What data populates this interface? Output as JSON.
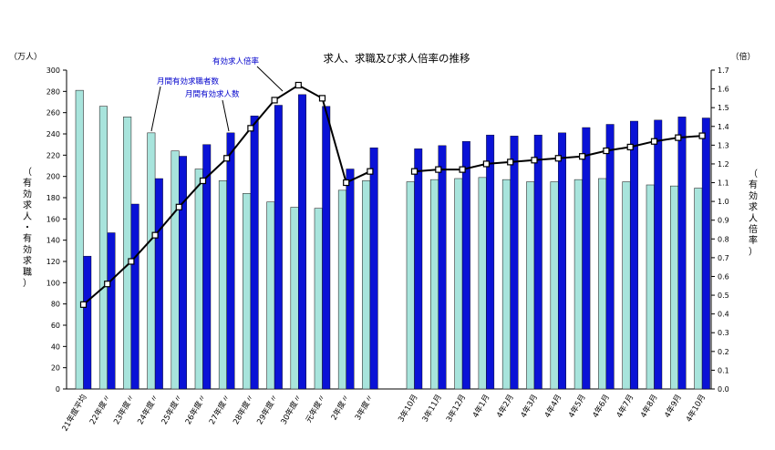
{
  "chart_data": {
    "type": "bar",
    "title": "求人、求職及び求人倍率の推移",
    "left_unit": "（万人）",
    "right_unit": "（倍）",
    "left_axis_label": "（有効求人・有効求職）",
    "right_axis_label": "（有効求人倍率）",
    "ylim_left": [
      0,
      300
    ],
    "yticks_left": [
      0,
      20,
      40,
      60,
      80,
      100,
      120,
      140,
      160,
      180,
      200,
      220,
      240,
      260,
      280,
      300
    ],
    "ylim_right": [
      0.0,
      1.7
    ],
    "yticks_right": [
      "0.0",
      "0.1",
      "0.2",
      "0.3",
      "0.4",
      "0.5",
      "0.6",
      "0.7",
      "0.8",
      "0.9",
      "1.0",
      "1.1",
      "1.2",
      "1.3",
      "1.4",
      "1.5",
      "1.6",
      "1.7"
    ],
    "categories": [
      "21年度平均",
      "22年度〃",
      "23年度〃",
      "24年度〃",
      "25年度〃",
      "26年度〃",
      "27年度〃",
      "28年度〃",
      "29年度〃",
      "30年度〃",
      "元年度〃",
      "2年度〃",
      "3年度〃",
      "3年10月",
      "3年11月",
      "3年12月",
      "4年1月",
      "4年2月",
      "4年3月",
      "4年4月",
      "4年5月",
      "4年6月",
      "4年7月",
      "4年8月",
      "4年9月",
      "4年10月"
    ],
    "series": [
      {
        "name": "月間有効求職者数",
        "type": "bar",
        "color": "#a8e4dc",
        "values": [
          281,
          266,
          256,
          241,
          224,
          207,
          196,
          184,
          176,
          171,
          170,
          187,
          196,
          195,
          197,
          198,
          199,
          197,
          195,
          195,
          197,
          198,
          195,
          192,
          191,
          189
        ]
      },
      {
        "name": "月間有効求人数",
        "type": "bar",
        "color": "#0a12d6",
        "values": [
          125,
          147,
          174,
          198,
          219,
          230,
          241,
          257,
          267,
          277,
          266,
          207,
          227,
          226,
          229,
          233,
          239,
          238,
          239,
          241,
          246,
          249,
          252,
          253,
          256,
          255
        ]
      },
      {
        "name": "有効求人倍率",
        "type": "line",
        "axis": "right",
        "values": [
          0.45,
          0.56,
          0.68,
          0.82,
          0.97,
          1.11,
          1.23,
          1.39,
          1.54,
          1.62,
          1.55,
          1.1,
          1.16,
          1.16,
          1.17,
          1.17,
          1.2,
          1.21,
          1.22,
          1.23,
          1.24,
          1.27,
          1.29,
          1.32,
          1.34,
          1.35
        ]
      }
    ],
    "annotations": [
      "月間有効求職者数",
      "月間有効求人数",
      "有効求人倍率"
    ],
    "grid": false,
    "legend": "none"
  }
}
